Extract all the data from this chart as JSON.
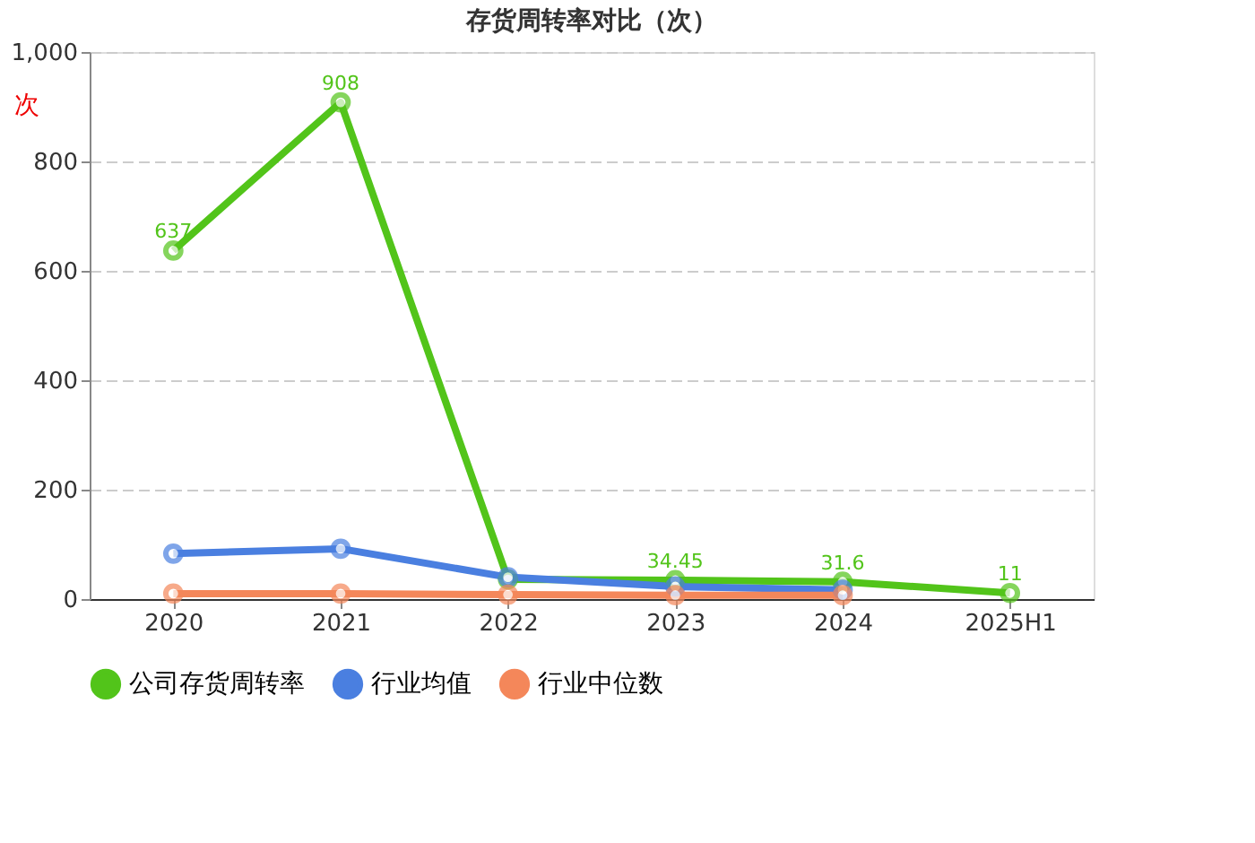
{
  "chart_data": {
    "type": "line",
    "title": "存货周转率对比（次）",
    "ylabel": "次",
    "categories": [
      "2020",
      "2021",
      "2022",
      "2023",
      "2024",
      "2025H1"
    ],
    "series": [
      {
        "name": "公司存货周转率",
        "color": "#52c41a",
        "values": [
          637,
          908,
          36,
          34.45,
          31.6,
          11
        ],
        "value_labels": [
          "637",
          "908",
          null,
          "34.45",
          "31.6",
          "11"
        ]
      },
      {
        "name": "行业均值",
        "color": "#4a7fe0",
        "values": [
          83,
          92,
          40,
          23,
          17,
          null
        ]
      },
      {
        "name": "行业中位数",
        "color": "#f4875a",
        "values": [
          10,
          10,
          8,
          7,
          7,
          null
        ]
      }
    ],
    "ylim": [
      0,
      1000
    ],
    "yticks": [
      0,
      200,
      400,
      600,
      800,
      {
        "value": 1000,
        "label": "1,000"
      }
    ],
    "grid": "y",
    "legend": "bottom",
    "marker": "circle",
    "line_style": "solid"
  }
}
